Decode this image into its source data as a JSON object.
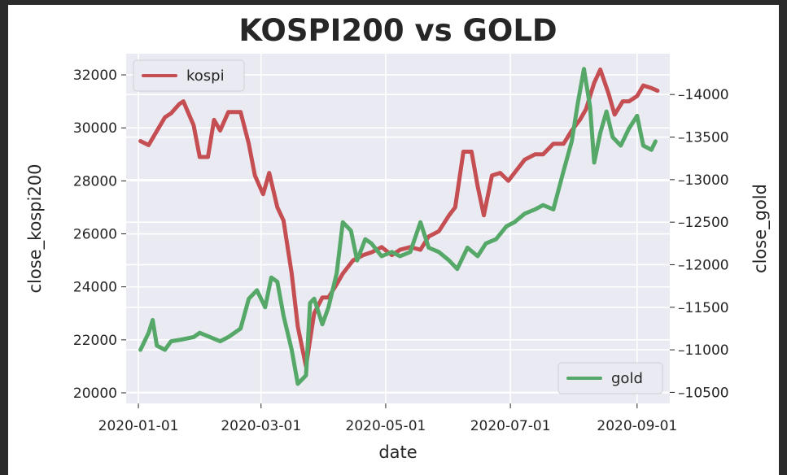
{
  "chart_data": {
    "type": "line",
    "title": "KOSPI200 vs GOLD",
    "xlabel": "date",
    "xlim": [
      "2019-12-26",
      "2020-09-17"
    ],
    "x_ticks": [
      "2020-01-01",
      "2020-03-01",
      "2020-05-01",
      "2020-07-01",
      "2020-09-01"
    ],
    "grid": true,
    "left_axis": {
      "label": "close_kospi200",
      "ylim": [
        19600,
        32800
      ],
      "ticks": [
        20000,
        22000,
        24000,
        26000,
        28000,
        30000,
        32000
      ],
      "tick_labels": [
        "20000",
        "22000",
        "24000",
        "26000",
        "28000",
        "30000",
        "32000"
      ]
    },
    "right_axis": {
      "label": "close_gold",
      "ylim": [
        10370,
        14480
      ],
      "ticks": [
        10500,
        11000,
        11500,
        12000,
        12500,
        13000,
        13500,
        14000
      ],
      "tick_labels": [
        "10500",
        "11000",
        "11500",
        "12000",
        "12500",
        "13000",
        "13500",
        "14000"
      ]
    },
    "series": [
      {
        "name": "kospi",
        "axis": "left",
        "color": "#c44e52",
        "legend_position": "upper left",
        "points": [
          [
            "2020-01-02",
            29500
          ],
          [
            "2020-01-06",
            29350
          ],
          [
            "2020-01-09",
            29750
          ],
          [
            "2020-01-14",
            30400
          ],
          [
            "2020-01-17",
            30550
          ],
          [
            "2020-01-21",
            30900
          ],
          [
            "2020-01-23",
            31000
          ],
          [
            "2020-01-28",
            30100
          ],
          [
            "2020-01-31",
            28900
          ],
          [
            "2020-02-04",
            28900
          ],
          [
            "2020-02-07",
            30300
          ],
          [
            "2020-02-10",
            29900
          ],
          [
            "2020-02-14",
            30600
          ],
          [
            "2020-02-20",
            30600
          ],
          [
            "2020-02-24",
            29400
          ],
          [
            "2020-02-27",
            28200
          ],
          [
            "2020-03-02",
            27500
          ],
          [
            "2020-03-05",
            28300
          ],
          [
            "2020-03-09",
            27000
          ],
          [
            "2020-03-12",
            26500
          ],
          [
            "2020-03-16",
            24500
          ],
          [
            "2020-03-19",
            22500
          ],
          [
            "2020-03-23",
            21000
          ],
          [
            "2020-03-25",
            22000
          ],
          [
            "2020-03-27",
            23000
          ],
          [
            "2020-03-31",
            23600
          ],
          [
            "2020-04-03",
            23600
          ],
          [
            "2020-04-07",
            24100
          ],
          [
            "2020-04-10",
            24500
          ],
          [
            "2020-04-15",
            25000
          ],
          [
            "2020-04-20",
            25200
          ],
          [
            "2020-04-24",
            25300
          ],
          [
            "2020-04-29",
            25500
          ],
          [
            "2020-05-04",
            25200
          ],
          [
            "2020-05-08",
            25400
          ],
          [
            "2020-05-13",
            25500
          ],
          [
            "2020-05-18",
            25400
          ],
          [
            "2020-05-22",
            25900
          ],
          [
            "2020-05-27",
            26100
          ],
          [
            "2020-06-01",
            26700
          ],
          [
            "2020-06-04",
            27000
          ],
          [
            "2020-06-08",
            29100
          ],
          [
            "2020-06-12",
            29100
          ],
          [
            "2020-06-15",
            27800
          ],
          [
            "2020-06-18",
            26700
          ],
          [
            "2020-06-22",
            28200
          ],
          [
            "2020-06-26",
            28300
          ],
          [
            "2020-06-30",
            28000
          ],
          [
            "2020-07-03",
            28300
          ],
          [
            "2020-07-08",
            28800
          ],
          [
            "2020-07-13",
            29000
          ],
          [
            "2020-07-17",
            29000
          ],
          [
            "2020-07-22",
            29400
          ],
          [
            "2020-07-27",
            29400
          ],
          [
            "2020-07-31",
            29900
          ],
          [
            "2020-08-04",
            30300
          ],
          [
            "2020-08-07",
            30700
          ],
          [
            "2020-08-11",
            31700
          ],
          [
            "2020-08-14",
            32200
          ],
          [
            "2020-08-18",
            31300
          ],
          [
            "2020-08-21",
            30500
          ],
          [
            "2020-08-25",
            31000
          ],
          [
            "2020-08-28",
            31000
          ],
          [
            "2020-09-01",
            31200
          ],
          [
            "2020-09-04",
            31600
          ],
          [
            "2020-09-08",
            31500
          ],
          [
            "2020-09-11",
            31400
          ]
        ]
      },
      {
        "name": "gold",
        "axis": "right",
        "color": "#55a868",
        "legend_position": "lower right",
        "points": [
          [
            "2020-01-02",
            11000
          ],
          [
            "2020-01-06",
            11200
          ],
          [
            "2020-01-08",
            11350
          ],
          [
            "2020-01-10",
            11050
          ],
          [
            "2020-01-14",
            11000
          ],
          [
            "2020-01-17",
            11100
          ],
          [
            "2020-01-22",
            11120
          ],
          [
            "2020-01-28",
            11150
          ],
          [
            "2020-01-31",
            11200
          ],
          [
            "2020-02-05",
            11150
          ],
          [
            "2020-02-10",
            11100
          ],
          [
            "2020-02-14",
            11150
          ],
          [
            "2020-02-20",
            11250
          ],
          [
            "2020-02-24",
            11600
          ],
          [
            "2020-02-28",
            11700
          ],
          [
            "2020-03-03",
            11500
          ],
          [
            "2020-03-06",
            11850
          ],
          [
            "2020-03-09",
            11800
          ],
          [
            "2020-03-12",
            11400
          ],
          [
            "2020-03-16",
            11000
          ],
          [
            "2020-03-19",
            10600
          ],
          [
            "2020-03-23",
            10700
          ],
          [
            "2020-03-25",
            11550
          ],
          [
            "2020-03-27",
            11600
          ],
          [
            "2020-03-31",
            11300
          ],
          [
            "2020-04-03",
            11500
          ],
          [
            "2020-04-07",
            11900
          ],
          [
            "2020-04-10",
            12500
          ],
          [
            "2020-04-14",
            12400
          ],
          [
            "2020-04-17",
            12050
          ],
          [
            "2020-04-21",
            12300
          ],
          [
            "2020-04-24",
            12250
          ],
          [
            "2020-04-29",
            12100
          ],
          [
            "2020-05-04",
            12150
          ],
          [
            "2020-05-08",
            12100
          ],
          [
            "2020-05-13",
            12150
          ],
          [
            "2020-05-18",
            12500
          ],
          [
            "2020-05-22",
            12200
          ],
          [
            "2020-05-27",
            12150
          ],
          [
            "2020-06-01",
            12050
          ],
          [
            "2020-06-05",
            11950
          ],
          [
            "2020-06-10",
            12200
          ],
          [
            "2020-06-15",
            12100
          ],
          [
            "2020-06-19",
            12250
          ],
          [
            "2020-06-24",
            12300
          ],
          [
            "2020-06-29",
            12450
          ],
          [
            "2020-07-03",
            12500
          ],
          [
            "2020-07-08",
            12600
          ],
          [
            "2020-07-13",
            12650
          ],
          [
            "2020-07-17",
            12700
          ],
          [
            "2020-07-22",
            12650
          ],
          [
            "2020-07-27",
            13100
          ],
          [
            "2020-07-31",
            13450
          ],
          [
            "2020-08-03",
            13900
          ],
          [
            "2020-08-06",
            14300
          ],
          [
            "2020-08-09",
            13850
          ],
          [
            "2020-08-11",
            13200
          ],
          [
            "2020-08-14",
            13550
          ],
          [
            "2020-08-17",
            13800
          ],
          [
            "2020-08-20",
            13500
          ],
          [
            "2020-08-24",
            13400
          ],
          [
            "2020-08-28",
            13600
          ],
          [
            "2020-09-01",
            13750
          ],
          [
            "2020-09-04",
            13400
          ],
          [
            "2020-09-08",
            13350
          ],
          [
            "2020-09-10",
            13450
          ]
        ]
      }
    ]
  }
}
